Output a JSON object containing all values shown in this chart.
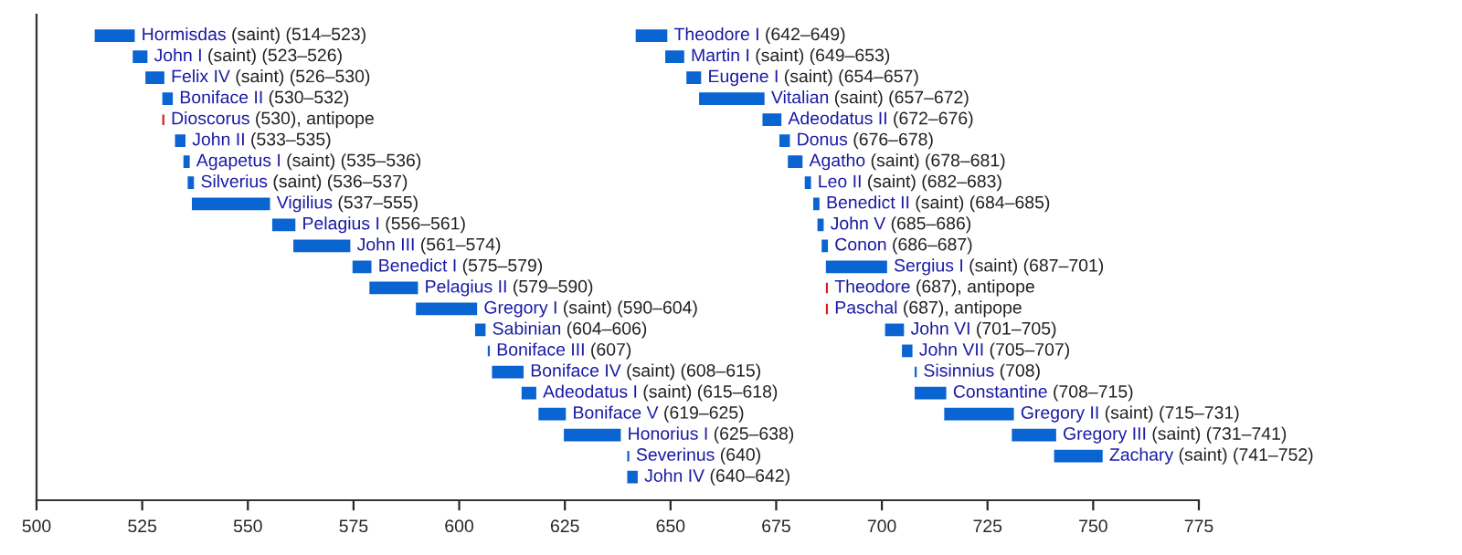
{
  "chart_data": {
    "type": "bar",
    "orientation": "horizontal",
    "categories": [
      null,
      null,
      null,
      null,
      null,
      null,
      null,
      null,
      null,
      null,
      null,
      null,
      null,
      null,
      null,
      null,
      null,
      null,
      null,
      null,
      null,
      null
    ],
    "series": [
      {
        "base": [
          514,
          523,
          526,
          530,
          530,
          533,
          535,
          536,
          537,
          556,
          561,
          575,
          579,
          590,
          604,
          607,
          608,
          615,
          619,
          625,
          640,
          640
        ],
        "values": [
          9,
          3,
          4,
          2,
          0,
          2,
          1,
          1,
          18,
          5,
          13,
          4,
          11,
          14,
          2,
          0,
          7,
          3,
          6,
          13,
          0,
          2
        ],
        "colors": [
          "#0a64d2",
          "#0a64d2",
          "#0a64d2",
          "#0a64d2",
          "#d22222",
          "#0a64d2",
          "#0a64d2",
          "#0a64d2",
          "#0a64d2",
          "#0a64d2",
          "#0a64d2",
          "#0a64d2",
          "#0a64d2",
          "#0a64d2",
          "#0a64d2",
          "#0a64d2",
          "#0a64d2",
          "#0a64d2",
          "#0a64d2",
          "#0a64d2",
          "#0a64d2",
          "#0a64d2"
        ],
        "value_labels": [
          "Hormisdas (saint) (514–523)",
          "John I (saint) (523–526)",
          "Felix IV (saint) (526–530)",
          "Boniface II (530–532)",
          "Dioscorus (530), antipope",
          "John II (533–535)",
          "Agapetus I (saint) (535–536)",
          "Silverius (saint) (536–537)",
          "Vigilius (537–555)",
          "Pelagius I (556–561)",
          "John III (561–574)",
          "Benedict I (575–579)",
          "Pelagius II (579–590)",
          "Gregory I (saint) (590–604)",
          "Sabinian (604–606)",
          "Boniface III (607)",
          "Boniface IV (saint) (608–615)",
          "Adeodatus I (saint) (615–618)",
          "Boniface V (619–625)",
          "Honorius I (625–638)",
          "Severinus (640)",
          "John IV (640–642)"
        ]
      },
      {
        "base": [
          642,
          649,
          654,
          657,
          672,
          676,
          678,
          682,
          684,
          685,
          686,
          687,
          687,
          687,
          701,
          705,
          708,
          708,
          715,
          731,
          741,
          null
        ],
        "values": [
          7,
          4,
          3,
          15,
          4,
          2,
          3,
          1,
          1,
          1,
          1,
          14,
          0,
          0,
          4,
          2,
          0,
          7,
          16,
          10,
          11,
          null
        ],
        "colors": [
          "#0a64d2",
          "#0a64d2",
          "#0a64d2",
          "#0a64d2",
          "#0a64d2",
          "#0a64d2",
          "#0a64d2",
          "#0a64d2",
          "#0a64d2",
          "#0a64d2",
          "#0a64d2",
          "#0a64d2",
          "#d22222",
          "#d22222",
          "#0a64d2",
          "#0a64d2",
          "#0a64d2",
          "#0a64d2",
          "#0a64d2",
          "#0a64d2",
          "#0a64d2",
          null
        ],
        "value_labels": [
          "Theodore I (642–649)",
          "Martin I (saint) (649–653)",
          "Eugene I (saint) (654–657)",
          "Vitalian (saint) (657–672)",
          "Adeodatus II (672–676)",
          "Donus (676–678)",
          "Agatho (saint) (678–681)",
          "Leo II (saint) (682–683)",
          "Benedict II (saint) (684–685)",
          "John V (685–686)",
          "Conon (686–687)",
          "Sergius I (saint) (687–701)",
          "Theodore (687), antipope",
          "Paschal (687), antipope",
          "John VI (701–705)",
          "John VII (705–707)",
          "Sisinnius (708)",
          "Constantine (708–715)",
          "Gregory II (saint) (715–731)",
          "Gregory III (saint) (731–741)",
          "Zachary (saint) (741–752)",
          null
        ]
      }
    ],
    "xlim": [
      500,
      775
    ],
    "xticks": [
      500,
      525,
      550,
      575,
      600,
      625,
      650,
      675,
      700,
      725,
      750,
      775
    ],
    "tick_labels": "x",
    "grid": false
  }
}
